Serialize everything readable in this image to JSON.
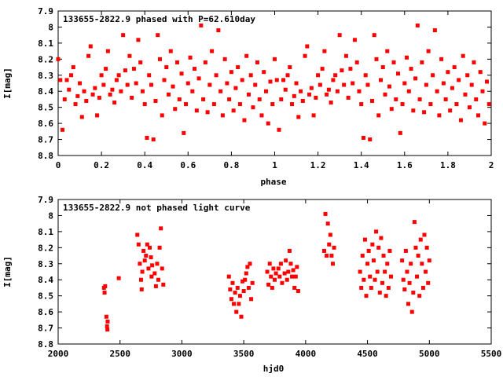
{
  "chart_data": [
    {
      "type": "scatter",
      "title": "133655-2822.9 phased with P=62.610day",
      "xlabel": "phase",
      "ylabel": "I[mag]",
      "xlim": [
        0,
        2
      ],
      "ylim": [
        7.9,
        8.8
      ],
      "y_inverted": true,
      "x_ticks": [
        "0",
        "0.2",
        "0.4",
        "0.6",
        "0.8",
        "1",
        "1.2",
        "1.4",
        "1.6",
        "1.8",
        "2"
      ],
      "y_ticks": [
        "7.9",
        "8",
        "8.1",
        "8.2",
        "8.3",
        "8.4",
        "8.5",
        "8.6",
        "8.7",
        "8.8"
      ],
      "marker_color": "#ff0000",
      "points": [
        [
          0.0,
          8.2
        ],
        [
          0.01,
          8.33
        ],
        [
          0.02,
          8.64
        ],
        [
          0.03,
          8.45
        ],
        [
          0.04,
          8.33
        ],
        [
          0.05,
          8.39
        ],
        [
          0.06,
          8.3
        ],
        [
          0.07,
          8.25
        ],
        [
          0.08,
          8.48
        ],
        [
          0.09,
          8.43
        ],
        [
          0.1,
          8.35
        ],
        [
          0.11,
          8.56
        ],
        [
          0.12,
          8.4
        ],
        [
          0.13,
          8.46
        ],
        [
          0.14,
          8.18
        ],
        [
          0.15,
          8.12
        ],
        [
          0.16,
          8.42
        ],
        [
          0.17,
          8.38
        ],
        [
          0.18,
          8.55
        ],
        [
          0.19,
          8.44
        ],
        [
          0.2,
          8.3
        ],
        [
          0.21,
          8.36
        ],
        [
          0.22,
          8.26
        ],
        [
          0.23,
          8.15
        ],
        [
          0.24,
          8.42
        ],
        [
          0.25,
          8.39
        ],
        [
          0.26,
          8.47
        ],
        [
          0.27,
          8.33
        ],
        [
          0.28,
          8.3
        ],
        [
          0.29,
          8.4
        ],
        [
          0.3,
          8.05
        ],
        [
          0.31,
          8.27
        ],
        [
          0.32,
          8.36
        ],
        [
          0.33,
          8.18
        ],
        [
          0.34,
          8.44
        ],
        [
          0.35,
          8.26
        ],
        [
          0.36,
          8.35
        ],
        [
          0.37,
          8.08
        ],
        [
          0.38,
          8.22
        ],
        [
          0.39,
          8.4
        ],
        [
          0.4,
          8.48
        ],
        [
          0.41,
          8.69
        ],
        [
          0.42,
          8.3
        ],
        [
          0.43,
          8.36
        ],
        [
          0.44,
          8.7
        ],
        [
          0.45,
          8.46
        ],
        [
          0.46,
          8.05
        ],
        [
          0.47,
          8.2
        ],
        [
          0.48,
          8.55
        ],
        [
          0.49,
          8.33
        ],
        [
          0.5,
          8.25
        ],
        [
          0.51,
          8.42
        ],
        [
          0.52,
          8.15
        ],
        [
          0.53,
          8.37
        ],
        [
          0.54,
          8.51
        ],
        [
          0.55,
          8.22
        ],
        [
          0.56,
          8.45
        ],
        [
          0.57,
          8.29
        ],
        [
          0.58,
          8.66
        ],
        [
          0.59,
          8.48
        ],
        [
          0.6,
          8.35
        ],
        [
          0.61,
          8.19
        ],
        [
          0.62,
          8.4
        ],
        [
          0.63,
          8.26
        ],
        [
          0.64,
          8.52
        ],
        [
          0.65,
          8.32
        ],
        [
          0.66,
          7.99
        ],
        [
          0.67,
          8.45
        ],
        [
          0.68,
          8.22
        ],
        [
          0.69,
          8.53
        ],
        [
          0.7,
          8.36
        ],
        [
          0.71,
          8.15
        ],
        [
          0.72,
          8.48
        ],
        [
          0.73,
          8.3
        ],
        [
          0.74,
          8.02
        ],
        [
          0.75,
          8.4
        ],
        [
          0.76,
          8.55
        ],
        [
          0.77,
          8.2
        ],
        [
          0.78,
          8.35
        ],
        [
          0.79,
          8.45
        ],
        [
          0.8,
          8.28
        ],
        [
          0.81,
          8.52
        ],
        [
          0.82,
          8.38
        ],
        [
          0.83,
          8.25
        ],
        [
          0.84,
          8.48
        ],
        [
          0.85,
          8.33
        ],
        [
          0.86,
          8.58
        ],
        [
          0.87,
          8.18
        ],
        [
          0.88,
          8.42
        ],
        [
          0.89,
          8.3
        ],
        [
          0.9,
          8.5
        ],
        [
          0.91,
          8.36
        ],
        [
          0.92,
          8.22
        ],
        [
          0.93,
          8.45
        ],
        [
          0.94,
          8.55
        ],
        [
          0.95,
          8.28
        ],
        [
          0.96,
          8.4
        ],
        [
          0.97,
          8.6
        ],
        [
          0.98,
          8.34
        ],
        [
          0.99,
          8.48
        ]
      ]
    },
    {
      "type": "scatter",
      "title": "133655-2822.9 not phased light curve",
      "xlabel": "hjd0",
      "ylabel": "I[mag]",
      "xlim": [
        2000,
        5500
      ],
      "ylim": [
        7.9,
        8.8
      ],
      "y_inverted": true,
      "x_ticks": [
        "2000",
        "2500",
        "3000",
        "3500",
        "4000",
        "4500",
        "5000",
        "5500"
      ],
      "y_ticks": [
        "7.9",
        "8",
        "8.1",
        "8.2",
        "8.3",
        "8.4",
        "8.5",
        "8.6",
        "8.7",
        "8.8"
      ],
      "marker_color": "#ff0000",
      "points": [
        [
          2370,
          8.45
        ],
        [
          2375,
          8.48
        ],
        [
          2380,
          8.44
        ],
        [
          2390,
          8.63
        ],
        [
          2395,
          8.69
        ],
        [
          2398,
          8.71
        ],
        [
          2400,
          8.66
        ],
        [
          2490,
          8.39
        ],
        [
          2640,
          8.12
        ],
        [
          2650,
          8.18
        ],
        [
          2660,
          8.3
        ],
        [
          2670,
          8.4
        ],
        [
          2675,
          8.46
        ],
        [
          2680,
          8.35
        ],
        [
          2690,
          8.22
        ],
        [
          2700,
          8.28
        ],
        [
          2710,
          8.25
        ],
        [
          2720,
          8.18
        ],
        [
          2730,
          8.33
        ],
        [
          2740,
          8.2
        ],
        [
          2750,
          8.26
        ],
        [
          2755,
          8.38
        ],
        [
          2760,
          8.31
        ],
        [
          2780,
          8.36
        ],
        [
          2790,
          8.44
        ],
        [
          2800,
          8.3
        ],
        [
          2810,
          8.4
        ],
        [
          2820,
          8.2
        ],
        [
          2830,
          8.08
        ],
        [
          2840,
          8.33
        ],
        [
          2850,
          8.43
        ],
        [
          3380,
          8.38
        ],
        [
          3390,
          8.46
        ],
        [
          3400,
          8.52
        ],
        [
          3410,
          8.42
        ],
        [
          3420,
          8.55
        ],
        [
          3430,
          8.48
        ],
        [
          3440,
          8.6
        ],
        [
          3450,
          8.45
        ],
        [
          3460,
          8.55
        ],
        [
          3470,
          8.5
        ],
        [
          3480,
          8.63
        ],
        [
          3490,
          8.41
        ],
        [
          3500,
          8.47
        ],
        [
          3510,
          8.4
        ],
        [
          3520,
          8.36
        ],
        [
          3530,
          8.32
        ],
        [
          3540,
          8.45
        ],
        [
          3550,
          8.3
        ],
        [
          3560,
          8.52
        ],
        [
          3570,
          8.42
        ],
        [
          3690,
          8.35
        ],
        [
          3700,
          8.43
        ],
        [
          3710,
          8.3
        ],
        [
          3720,
          8.38
        ],
        [
          3730,
          8.45
        ],
        [
          3740,
          8.33
        ],
        [
          3750,
          8.4
        ],
        [
          3760,
          8.36
        ],
        [
          3780,
          8.33
        ],
        [
          3790,
          8.38
        ],
        [
          3800,
          8.3
        ],
        [
          3810,
          8.42
        ],
        [
          3830,
          8.36
        ],
        [
          3840,
          8.28
        ],
        [
          3850,
          8.4
        ],
        [
          3860,
          8.35
        ],
        [
          3870,
          8.22
        ],
        [
          3880,
          8.3
        ],
        [
          3890,
          8.38
        ],
        [
          3900,
          8.34
        ],
        [
          3910,
          8.45
        ],
        [
          3920,
          8.38
        ],
        [
          3930,
          8.32
        ],
        [
          3940,
          8.47
        ],
        [
          4150,
          8.22
        ],
        [
          4160,
          7.99
        ],
        [
          4170,
          8.25
        ],
        [
          4180,
          8.05
        ],
        [
          4190,
          8.18
        ],
        [
          4200,
          8.12
        ],
        [
          4210,
          8.25
        ],
        [
          4220,
          8.3
        ],
        [
          4230,
          8.2
        ],
        [
          4440,
          8.35
        ],
        [
          4450,
          8.45
        ],
        [
          4460,
          8.25
        ],
        [
          4470,
          8.4
        ],
        [
          4480,
          8.15
        ],
        [
          4490,
          8.5
        ],
        [
          4500,
          8.3
        ],
        [
          4510,
          8.22
        ],
        [
          4520,
          8.38
        ],
        [
          4530,
          8.45
        ],
        [
          4540,
          8.18
        ],
        [
          4550,
          8.28
        ],
        [
          4560,
          8.4
        ],
        [
          4570,
          8.1
        ],
        [
          4580,
          8.35
        ],
        [
          4590,
          8.2
        ],
        [
          4600,
          8.48
        ],
        [
          4610,
          8.14
        ],
        [
          4620,
          8.42
        ],
        [
          4630,
          8.25
        ],
        [
          4640,
          8.35
        ],
        [
          4650,
          8.5
        ],
        [
          4660,
          8.3
        ],
        [
          4670,
          8.45
        ],
        [
          4680,
          8.22
        ],
        [
          4690,
          8.38
        ],
        [
          4780,
          8.28
        ],
        [
          4790,
          8.4
        ],
        [
          4800,
          8.46
        ],
        [
          4810,
          8.22
        ],
        [
          4820,
          8.35
        ],
        [
          4830,
          8.55
        ],
        [
          4840,
          8.42
        ],
        [
          4850,
          8.3
        ],
        [
          4860,
          8.6
        ],
        [
          4870,
          8.48
        ],
        [
          4880,
          8.04
        ],
        [
          4890,
          8.2
        ],
        [
          4900,
          8.38
        ],
        [
          4910,
          8.25
        ],
        [
          4920,
          8.5
        ],
        [
          4930,
          8.15
        ],
        [
          4940,
          8.3
        ],
        [
          4950,
          8.45
        ],
        [
          4960,
          8.12
        ],
        [
          4970,
          8.35
        ],
        [
          4980,
          8.2
        ],
        [
          4990,
          8.42
        ],
        [
          5000,
          8.28
        ]
      ]
    }
  ]
}
